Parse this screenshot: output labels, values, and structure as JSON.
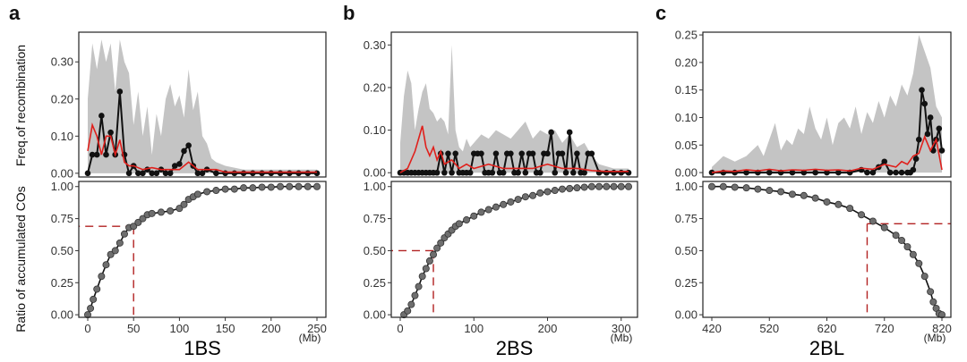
{
  "figure": {
    "y_label_top": "Freq.of recombination",
    "y_label_bottom": "Ratio of accumulated COs",
    "x_unit": "(Mb)"
  },
  "colors": {
    "envelope": "#c4c4c4",
    "observed": "#111111",
    "expected": "#e0201c",
    "reference": "#b22222",
    "cumulative_point": "#6e6e6e"
  },
  "chart_data": [
    {
      "panel": "a",
      "chromosome": "1BS",
      "type": "line",
      "x_range": [
        0,
        250
      ],
      "x_ticks": [
        0,
        50,
        100,
        150,
        200,
        250
      ],
      "freq": {
        "ylim": [
          -0.01,
          0.38
        ],
        "y_ticks": [
          0.0,
          0.1,
          0.2,
          0.3
        ],
        "y_tick_labels": [
          "0.00",
          "0.10",
          "0.20",
          "0.30"
        ],
        "envelope_x": [
          0,
          5,
          10,
          15,
          20,
          25,
          30,
          35,
          40,
          45,
          50,
          55,
          60,
          65,
          70,
          75,
          80,
          85,
          90,
          95,
          100,
          105,
          110,
          115,
          120,
          125,
          130,
          135,
          140,
          150,
          160,
          170,
          180,
          190,
          200,
          210,
          220,
          230,
          240,
          250
        ],
        "envelope_upper": [
          0.2,
          0.35,
          0.28,
          0.36,
          0.3,
          0.35,
          0.22,
          0.36,
          0.3,
          0.27,
          0.13,
          0.22,
          0.1,
          0.18,
          0.05,
          0.16,
          0.1,
          0.2,
          0.24,
          0.18,
          0.21,
          0.15,
          0.28,
          0.17,
          0.22,
          0.1,
          0.08,
          0.04,
          0.03,
          0.02,
          0.015,
          0.01,
          0.01,
          0.01,
          0.01,
          0.01,
          0.01,
          0.01,
          0.01,
          0.01
        ],
        "observed_x": [
          0,
          5,
          10,
          15,
          20,
          25,
          30,
          35,
          40,
          45,
          50,
          55,
          60,
          65,
          70,
          75,
          80,
          85,
          90,
          95,
          100,
          105,
          110,
          115,
          120,
          125,
          130,
          140,
          150,
          160,
          170,
          180,
          190,
          200,
          210,
          220,
          230,
          240,
          250
        ],
        "observed": [
          0.0,
          0.05,
          0.05,
          0.155,
          0.05,
          0.11,
          0.05,
          0.22,
          0.05,
          0.0,
          0.02,
          0.0,
          0.0,
          0.01,
          0.0,
          0.0,
          0.01,
          0.0,
          0.0,
          0.02,
          0.025,
          0.06,
          0.075,
          0.02,
          0.0,
          0.0,
          0.01,
          0.0,
          0.0,
          0.0,
          0.0,
          0.0,
          0.0,
          0.0,
          0.0,
          0.0,
          0.0,
          0.0,
          0.0
        ],
        "expected_x": [
          0,
          5,
          10,
          15,
          20,
          25,
          30,
          35,
          40,
          45,
          50,
          60,
          70,
          80,
          90,
          100,
          110,
          115,
          120,
          130,
          140,
          150,
          160,
          180,
          200,
          220,
          250
        ],
        "expected": [
          0.06,
          0.13,
          0.1,
          0.05,
          0.1,
          0.1,
          0.05,
          0.09,
          0.03,
          0.02,
          0.02,
          0.01,
          0.015,
          0.01,
          0.01,
          0.01,
          0.03,
          0.02,
          0.01,
          0.01,
          0.01,
          0.003,
          0.003,
          0.003,
          0.003,
          0.003,
          0.003
        ]
      },
      "cumulative": {
        "ylim": [
          -0.02,
          1.04
        ],
        "y_ticks": [
          0.0,
          0.25,
          0.5,
          0.75,
          1.0
        ],
        "y_tick_labels": [
          "0.00",
          "0.25",
          "0.50",
          "0.75",
          "1.00"
        ],
        "curve": [
          [
            0,
            0.0
          ],
          [
            3,
            0.05
          ],
          [
            6,
            0.12
          ],
          [
            10,
            0.2
          ],
          [
            15,
            0.3
          ],
          [
            20,
            0.39
          ],
          [
            25,
            0.47
          ],
          [
            30,
            0.5
          ],
          [
            35,
            0.56
          ],
          [
            40,
            0.63
          ],
          [
            45,
            0.68
          ],
          [
            50,
            0.69
          ],
          [
            55,
            0.72
          ],
          [
            60,
            0.75
          ],
          [
            65,
            0.78
          ],
          [
            70,
            0.79
          ],
          [
            80,
            0.8
          ],
          [
            90,
            0.81
          ],
          [
            100,
            0.83
          ],
          [
            105,
            0.86
          ],
          [
            110,
            0.9
          ],
          [
            115,
            0.92
          ],
          [
            120,
            0.94
          ],
          [
            130,
            0.96
          ],
          [
            140,
            0.97
          ],
          [
            150,
            0.98
          ],
          [
            160,
            0.98
          ],
          [
            170,
            0.99
          ],
          [
            180,
            0.99
          ],
          [
            190,
            0.995
          ],
          [
            200,
            0.995
          ],
          [
            210,
            1.0
          ],
          [
            220,
            1.0
          ],
          [
            230,
            1.0
          ],
          [
            240,
            1.0
          ],
          [
            250,
            1.0
          ]
        ],
        "reference_x": 50,
        "reference_y": 0.69,
        "reference_direction": "left"
      }
    },
    {
      "panel": "b",
      "chromosome": "2BS",
      "type": "line",
      "x_range": [
        0,
        310
      ],
      "x_ticks": [
        0,
        100,
        200,
        300
      ],
      "freq": {
        "ylim": [
          -0.01,
          0.33
        ],
        "y_ticks": [
          0.0,
          0.1,
          0.2,
          0.3
        ],
        "y_tick_labels": [
          "0.00",
          "0.10",
          "0.20",
          "0.30"
        ],
        "envelope_x": [
          0,
          5,
          10,
          15,
          20,
          25,
          30,
          35,
          40,
          45,
          50,
          55,
          60,
          65,
          70,
          75,
          80,
          85,
          90,
          95,
          100,
          110,
          120,
          130,
          140,
          150,
          160,
          170,
          180,
          190,
          200,
          210,
          220,
          230,
          240,
          250,
          260,
          270,
          280,
          290,
          300,
          310
        ],
        "envelope_upper": [
          0.07,
          0.18,
          0.24,
          0.21,
          0.1,
          0.15,
          0.19,
          0.21,
          0.15,
          0.14,
          0.12,
          0.13,
          0.12,
          0.09,
          0.3,
          0.1,
          0.06,
          0.05,
          0.08,
          0.06,
          0.07,
          0.09,
          0.08,
          0.1,
          0.09,
          0.08,
          0.1,
          0.12,
          0.08,
          0.1,
          0.09,
          0.1,
          0.07,
          0.09,
          0.06,
          0.07,
          0.04,
          0.02,
          0.015,
          0.01,
          0.01,
          0.01
        ],
        "observed_x": [
          0,
          5,
          10,
          15,
          20,
          25,
          30,
          35,
          40,
          45,
          50,
          55,
          60,
          65,
          70,
          75,
          80,
          85,
          90,
          95,
          100,
          105,
          110,
          115,
          120,
          125,
          130,
          135,
          140,
          145,
          150,
          155,
          160,
          165,
          170,
          175,
          180,
          185,
          190,
          195,
          200,
          205,
          210,
          215,
          220,
          225,
          230,
          235,
          240,
          245,
          250,
          255,
          260,
          270,
          280,
          290,
          300,
          310
        ],
        "observed": [
          0,
          0,
          0,
          0,
          0,
          0,
          0,
          0,
          0,
          0,
          0,
          0.045,
          0,
          0.045,
          0,
          0.045,
          0,
          0,
          0,
          0,
          0.045,
          0.045,
          0.045,
          0,
          0,
          0,
          0.045,
          0,
          0,
          0.045,
          0.045,
          0,
          0,
          0.045,
          0,
          0.045,
          0.045,
          0,
          0,
          0.045,
          0.045,
          0.095,
          0,
          0.045,
          0.045,
          0,
          0.095,
          0,
          0.045,
          0,
          0,
          0.045,
          0.045,
          0,
          0,
          0,
          0,
          0
        ],
        "expected_x": [
          0,
          10,
          20,
          25,
          30,
          35,
          40,
          45,
          50,
          55,
          60,
          70,
          80,
          90,
          100,
          120,
          140,
          160,
          180,
          200,
          220,
          240,
          260,
          280,
          310
        ],
        "expected": [
          0.0,
          0.01,
          0.05,
          0.08,
          0.11,
          0.06,
          0.04,
          0.06,
          0.03,
          0.05,
          0.02,
          0.03,
          0.01,
          0.02,
          0.01,
          0.02,
          0.01,
          0.01,
          0.01,
          0.02,
          0.01,
          0.01,
          0.005,
          0.003,
          0.003
        ]
      },
      "cumulative": {
        "ylim": [
          -0.02,
          1.04
        ],
        "y_ticks": [
          0.0,
          0.25,
          0.5,
          0.75,
          1.0
        ],
        "y_tick_labels": [
          "0.00",
          "0.25",
          "0.50",
          "0.75",
          "1.00"
        ],
        "curve": [
          [
            5,
            0.0
          ],
          [
            10,
            0.03
          ],
          [
            15,
            0.08
          ],
          [
            20,
            0.15
          ],
          [
            25,
            0.22
          ],
          [
            30,
            0.3
          ],
          [
            35,
            0.36
          ],
          [
            40,
            0.42
          ],
          [
            45,
            0.47
          ],
          [
            50,
            0.52
          ],
          [
            55,
            0.56
          ],
          [
            60,
            0.6
          ],
          [
            65,
            0.63
          ],
          [
            70,
            0.66
          ],
          [
            75,
            0.69
          ],
          [
            80,
            0.71
          ],
          [
            90,
            0.74
          ],
          [
            100,
            0.77
          ],
          [
            110,
            0.8
          ],
          [
            120,
            0.82
          ],
          [
            130,
            0.84
          ],
          [
            140,
            0.86
          ],
          [
            150,
            0.88
          ],
          [
            160,
            0.9
          ],
          [
            170,
            0.92
          ],
          [
            180,
            0.93
          ],
          [
            190,
            0.95
          ],
          [
            200,
            0.96
          ],
          [
            210,
            0.97
          ],
          [
            220,
            0.98
          ],
          [
            230,
            0.985
          ],
          [
            240,
            0.99
          ],
          [
            250,
            0.995
          ],
          [
            260,
            1.0
          ],
          [
            270,
            1.0
          ],
          [
            280,
            1.0
          ],
          [
            290,
            1.0
          ],
          [
            300,
            1.0
          ],
          [
            310,
            1.0
          ]
        ],
        "reference_x": 45,
        "reference_y": 0.5,
        "reference_direction": "left"
      }
    },
    {
      "panel": "c",
      "chromosome": "2BL",
      "type": "line",
      "x_range": [
        420,
        820
      ],
      "x_ticks": [
        420,
        520,
        620,
        720,
        820
      ],
      "freq": {
        "ylim": [
          -0.008,
          0.255
        ],
        "y_ticks": [
          0.0,
          0.05,
          0.1,
          0.15,
          0.2,
          0.25
        ],
        "y_tick_labels": [
          "0.00",
          "0.05",
          "0.10",
          "0.15",
          "0.20",
          "0.25"
        ],
        "envelope_x": [
          420,
          440,
          460,
          480,
          490,
          500,
          510,
          520,
          530,
          540,
          550,
          560,
          570,
          580,
          590,
          600,
          610,
          620,
          630,
          640,
          650,
          660,
          670,
          680,
          690,
          700,
          710,
          720,
          730,
          740,
          750,
          760,
          770,
          780,
          790,
          800,
          810,
          820
        ],
        "envelope_upper": [
          0.01,
          0.03,
          0.02,
          0.03,
          0.04,
          0.05,
          0.03,
          0.06,
          0.09,
          0.04,
          0.06,
          0.05,
          0.08,
          0.07,
          0.12,
          0.08,
          0.06,
          0.1,
          0.05,
          0.09,
          0.1,
          0.08,
          0.12,
          0.07,
          0.11,
          0.09,
          0.13,
          0.1,
          0.14,
          0.12,
          0.16,
          0.14,
          0.18,
          0.25,
          0.22,
          0.19,
          0.12,
          0.1
        ],
        "observed_x": [
          420,
          440,
          460,
          480,
          500,
          520,
          540,
          560,
          580,
          600,
          620,
          640,
          660,
          680,
          690,
          700,
          710,
          720,
          730,
          740,
          750,
          760,
          765,
          770,
          775,
          780,
          785,
          790,
          795,
          800,
          805,
          810,
          815,
          820
        ],
        "observed": [
          0,
          0,
          0,
          0,
          0,
          0,
          0,
          0,
          0,
          0,
          0,
          0,
          0,
          0.005,
          0,
          0,
          0.01,
          0.02,
          0,
          0,
          0,
          0,
          0,
          0.005,
          0.025,
          0.06,
          0.15,
          0.125,
          0.07,
          0.1,
          0.04,
          0.06,
          0.08,
          0.04
        ],
        "expected_x": [
          420,
          440,
          460,
          480,
          500,
          520,
          540,
          560,
          580,
          600,
          620,
          640,
          660,
          680,
          700,
          720,
          740,
          750,
          760,
          770,
          780,
          790,
          800,
          810,
          820
        ],
        "expected": [
          0.0,
          0.003,
          0.002,
          0.005,
          0.003,
          0.006,
          0.003,
          0.005,
          0.004,
          0.006,
          0.004,
          0.005,
          0.003,
          0.008,
          0.006,
          0.015,
          0.01,
          0.02,
          0.015,
          0.03,
          0.035,
          0.065,
          0.04,
          0.06,
          0.005
        ]
      },
      "cumulative": {
        "ylim": [
          -0.02,
          1.04
        ],
        "y_ticks": [
          0.0,
          0.25,
          0.5,
          0.75,
          1.0
        ],
        "y_tick_labels": [
          "0.00",
          "0.25",
          "0.50",
          "0.75",
          "1.00"
        ],
        "curve": [
          [
            420,
            1.0
          ],
          [
            440,
            1.0
          ],
          [
            460,
            0.995
          ],
          [
            480,
            0.99
          ],
          [
            500,
            0.98
          ],
          [
            520,
            0.97
          ],
          [
            540,
            0.96
          ],
          [
            560,
            0.94
          ],
          [
            580,
            0.93
          ],
          [
            600,
            0.91
          ],
          [
            620,
            0.88
          ],
          [
            640,
            0.86
          ],
          [
            660,
            0.83
          ],
          [
            680,
            0.78
          ],
          [
            700,
            0.73
          ],
          [
            720,
            0.68
          ],
          [
            740,
            0.62
          ],
          [
            750,
            0.58
          ],
          [
            760,
            0.53
          ],
          [
            770,
            0.47
          ],
          [
            780,
            0.4
          ],
          [
            790,
            0.3
          ],
          [
            800,
            0.18
          ],
          [
            805,
            0.1
          ],
          [
            810,
            0.05
          ],
          [
            815,
            0.01
          ],
          [
            820,
            0.0
          ]
        ],
        "reference_x": 690,
        "reference_y": 0.71,
        "reference_direction": "right"
      }
    }
  ]
}
